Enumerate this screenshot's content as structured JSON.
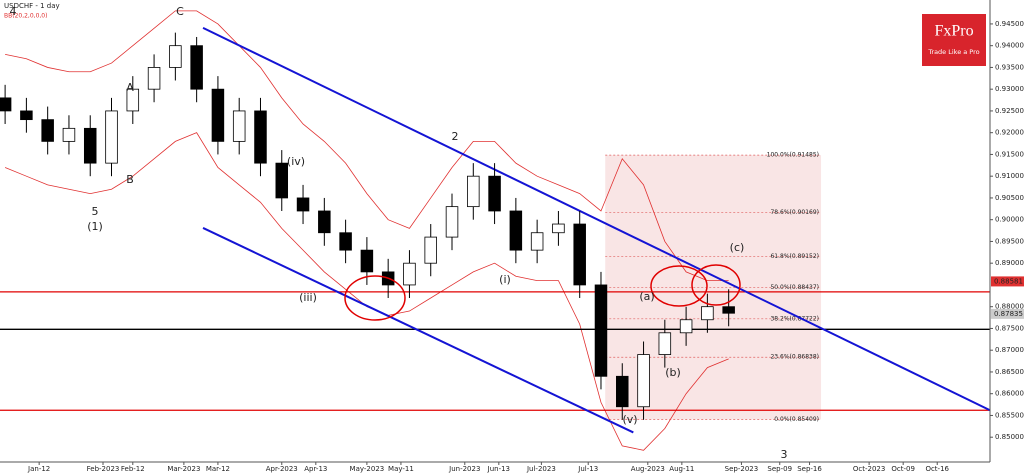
{
  "chart_data": {
    "type": "candlestick",
    "title": "USDCHF - 1 day",
    "subtitle": "BB(20,2,0,0,0)",
    "logo": {
      "name": "FxPro",
      "tagline": "Trade Like a Pro"
    },
    "x": [
      0,
      5,
      10,
      15,
      20,
      25,
      30,
      35,
      40,
      45,
      50,
      55,
      60,
      65,
      70,
      75,
      80,
      85,
      90,
      95,
      100,
      105,
      110,
      115,
      120,
      125,
      130,
      135,
      140,
      145,
      150,
      155,
      160,
      165,
      170
    ],
    "series": [
      {
        "name": "open",
        "values": [
          0.928,
          0.925,
          0.923,
          0.918,
          0.921,
          0.913,
          0.925,
          0.93,
          0.935,
          0.94,
          0.93,
          0.918,
          0.925,
          0.913,
          0.905,
          0.902,
          0.897,
          0.893,
          0.888,
          0.885,
          0.89,
          0.896,
          0.903,
          0.91,
          0.902,
          0.893,
          0.897,
          0.899,
          0.885,
          0.864,
          0.857,
          0.869,
          0.874,
          0.877,
          0.88
        ]
      },
      {
        "name": "high",
        "values": [
          0.931,
          0.928,
          0.926,
          0.924,
          0.924,
          0.928,
          0.933,
          0.938,
          0.943,
          0.942,
          0.933,
          0.928,
          0.928,
          0.916,
          0.908,
          0.905,
          0.9,
          0.896,
          0.891,
          0.893,
          0.899,
          0.906,
          0.913,
          0.913,
          0.905,
          0.9,
          0.902,
          0.902,
          0.888,
          0.867,
          0.872,
          0.877,
          0.88,
          0.883,
          0.884
        ]
      },
      {
        "name": "low",
        "values": [
          0.922,
          0.92,
          0.915,
          0.915,
          0.91,
          0.91,
          0.922,
          0.927,
          0.932,
          0.927,
          0.915,
          0.915,
          0.91,
          0.902,
          0.899,
          0.894,
          0.89,
          0.885,
          0.882,
          0.882,
          0.887,
          0.893,
          0.9,
          0.899,
          0.89,
          0.89,
          0.894,
          0.882,
          0.861,
          0.854,
          0.854,
          0.866,
          0.871,
          0.874,
          0.8755
        ]
      },
      {
        "name": "close",
        "values": [
          0.925,
          0.923,
          0.918,
          0.921,
          0.913,
          0.925,
          0.93,
          0.935,
          0.94,
          0.93,
          0.918,
          0.925,
          0.913,
          0.905,
          0.902,
          0.897,
          0.893,
          0.888,
          0.885,
          0.89,
          0.896,
          0.903,
          0.91,
          0.902,
          0.893,
          0.897,
          0.899,
          0.885,
          0.864,
          0.857,
          0.869,
          0.874,
          0.877,
          0.88,
          0.8785
        ]
      }
    ],
    "bands": [
      {
        "name": "upper",
        "color": "#e03030",
        "values": [
          0.938,
          0.937,
          0.935,
          0.934,
          0.934,
          0.936,
          0.94,
          0.944,
          0.948,
          0.948,
          0.945,
          0.94,
          0.935,
          0.928,
          0.922,
          0.918,
          0.913,
          0.906,
          0.9,
          0.898,
          0.905,
          0.912,
          0.918,
          0.918,
          0.913,
          0.91,
          0.908,
          0.906,
          0.902,
          0.914,
          0.908,
          0.895,
          0.888,
          0.886,
          0.886
        ]
      },
      {
        "name": "lower",
        "color": "#e03030",
        "values": [
          0.912,
          0.91,
          0.908,
          0.907,
          0.906,
          0.907,
          0.91,
          0.914,
          0.918,
          0.92,
          0.912,
          0.908,
          0.904,
          0.898,
          0.893,
          0.888,
          0.884,
          0.88,
          0.878,
          0.879,
          0.882,
          0.885,
          0.888,
          0.89,
          0.887,
          0.886,
          0.886,
          0.876,
          0.858,
          0.848,
          0.847,
          0.852,
          0.86,
          0.866,
          0.868
        ]
      }
    ],
    "xlim": [
      -1.2,
      231.4
    ],
    "xticks": [
      {
        "value": 8,
        "label": "Jan-12"
      },
      {
        "value": 23,
        "label": "Feb-2023"
      },
      {
        "value": 30,
        "label": "Feb-12"
      },
      {
        "value": 42,
        "label": "Mar-2023"
      },
      {
        "value": 50,
        "label": "Mar-12"
      },
      {
        "value": 65,
        "label": "Apr-2023"
      },
      {
        "value": 73,
        "label": "Apr-13"
      },
      {
        "value": 85,
        "label": "May-2023"
      },
      {
        "value": 93,
        "label": "May-11"
      },
      {
        "value": 108,
        "label": "Jun-2023"
      },
      {
        "value": 116,
        "label": "Jun-13"
      },
      {
        "value": 126,
        "label": "Jul-2023"
      },
      {
        "value": 137,
        "label": "Jul-13"
      },
      {
        "value": 151,
        "label": "Aug-2023"
      },
      {
        "value": 159,
        "label": "Aug-11"
      },
      {
        "value": 173,
        "label": "Sep-2023"
      },
      {
        "value": 182,
        "label": "Sep-09"
      },
      {
        "value": 189,
        "label": "Sep-16"
      },
      {
        "value": 203,
        "label": "Oct-2023"
      },
      {
        "value": 211,
        "label": "Oct-09"
      },
      {
        "value": 219,
        "label": "Oct-16"
      }
    ],
    "ylim": [
      0.8443,
      0.9505
    ],
    "yticks": [
      {
        "value": 0.945,
        "label": "0.94500"
      },
      {
        "value": 0.94,
        "label": "0.94000"
      },
      {
        "value": 0.935,
        "label": "0.93500"
      },
      {
        "value": 0.93,
        "label": "0.93000"
      },
      {
        "value": 0.925,
        "label": "0.92500"
      },
      {
        "value": 0.92,
        "label": "0.92000"
      },
      {
        "value": 0.915,
        "label": "0.91500"
      },
      {
        "value": 0.91,
        "label": "0.91000"
      },
      {
        "value": 0.905,
        "label": "0.90500"
      },
      {
        "value": 0.9,
        "label": "0.90000"
      },
      {
        "value": 0.895,
        "label": "0.89500"
      },
      {
        "value": 0.89,
        "label": "0.89000"
      },
      {
        "value": 0.88,
        "label": "0.88000"
      },
      {
        "value": 0.875,
        "label": "0.87500"
      },
      {
        "value": 0.87,
        "label": "0.87000"
      },
      {
        "value": 0.865,
        "label": "0.86500"
      },
      {
        "value": 0.86,
        "label": "0.86000"
      },
      {
        "value": 0.855,
        "label": "0.85500"
      },
      {
        "value": 0.85,
        "label": "0.85000"
      }
    ],
    "price_labels": [
      {
        "value": 0.88581,
        "label": "0.88581",
        "color": "#e03030"
      },
      {
        "value": 0.87835,
        "label": "0.87835",
        "color": "#cccccc"
      }
    ],
    "levels": [
      {
        "value": 0.8834,
        "color": "#e00000"
      },
      {
        "value": 0.8748,
        "color": "#000000"
      },
      {
        "value": 0.8562,
        "color": "#e00000"
      }
    ],
    "trendlines": [
      {
        "color": "#1414d4",
        "x": [
          46.5,
          231.4
        ],
        "y": [
          0.9441,
          0.8562
        ]
      },
      {
        "color": "#1414d4",
        "x": [
          46.5,
          147.6
        ],
        "y": [
          0.8981,
          0.8511
        ]
      }
    ],
    "fibonacci": {
      "x": [
        141,
        191.7
      ],
      "levels": [
        {
          "value": 0.91485,
          "label": "100.0%(0.91485)"
        },
        {
          "value": 0.90169,
          "label": "78.6%(0.90169)"
        },
        {
          "value": 0.89152,
          "label": "61.8%(0.89152)"
        },
        {
          "value": 0.88437,
          "label": "50.0%(0.88437)"
        },
        {
          "value": 0.87722,
          "label": "38.2%(0.87722)"
        },
        {
          "value": 0.86838,
          "label": "23.6%(0.86838)"
        },
        {
          "value": 0.85409,
          "label": "0.0%(0.85409)"
        }
      ]
    },
    "annotations": [
      "4",
      "C",
      "A",
      "B",
      "5",
      "(1)",
      "2",
      "3",
      "(a)",
      "(b)",
      "(c)",
      "(i)",
      "(v)",
      "(iii)",
      "(iv)"
    ]
  }
}
